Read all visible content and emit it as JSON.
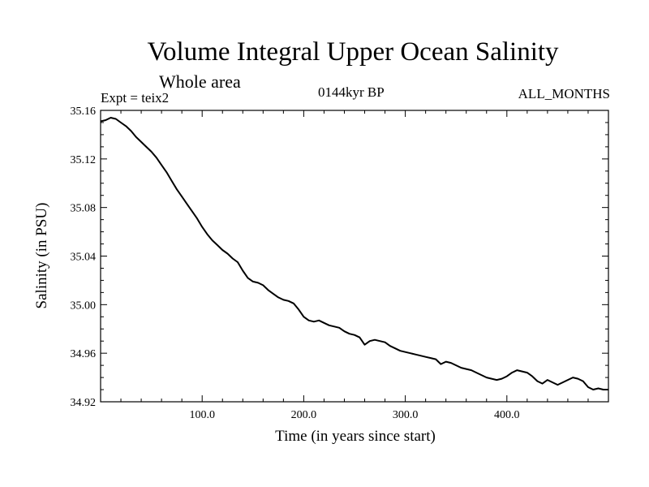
{
  "chart_data": {
    "type": "line",
    "title": "Volume Integral Upper Ocean Salinity",
    "subtitle": "Whole area",
    "left_label": "Expt = teix2",
    "center_label": "0144kyr BP",
    "right_label": "ALL_MONTHS",
    "xlabel": "Time (in years since start)",
    "ylabel": "Salinity (in PSU)",
    "xlim": [
      0,
      500
    ],
    "ylim": [
      34.92,
      35.16
    ],
    "xticks": [
      100,
      200,
      300,
      400
    ],
    "xtick_labels": [
      "100.0",
      "200.0",
      "300.0",
      "400.0"
    ],
    "yticks": [
      34.92,
      34.96,
      35.0,
      35.04,
      35.08,
      35.12,
      35.16
    ],
    "ytick_labels": [
      "34.92",
      "34.96",
      "35.00",
      "35.04",
      "35.08",
      "35.12",
      "35.16"
    ],
    "grid": false,
    "series": [
      {
        "line_color": "#000000",
        "x": [
          0,
          5,
          10,
          15,
          20,
          25,
          30,
          35,
          40,
          45,
          50,
          55,
          60,
          65,
          70,
          75,
          80,
          85,
          90,
          95,
          100,
          105,
          110,
          115,
          120,
          125,
          130,
          135,
          140,
          145,
          150,
          155,
          160,
          165,
          170,
          175,
          180,
          185,
          190,
          195,
          200,
          205,
          210,
          215,
          220,
          225,
          230,
          235,
          240,
          245,
          250,
          255,
          260,
          265,
          270,
          275,
          280,
          285,
          290,
          295,
          300,
          305,
          310,
          315,
          320,
          325,
          330,
          335,
          340,
          345,
          350,
          355,
          360,
          365,
          370,
          375,
          380,
          385,
          390,
          395,
          400,
          405,
          410,
          415,
          420,
          425,
          430,
          435,
          440,
          445,
          450,
          455,
          460,
          465,
          470,
          475,
          480,
          485,
          490,
          495,
          500
        ],
        "y": [
          35.151,
          35.152,
          35.154,
          35.153,
          35.15,
          35.147,
          35.143,
          35.138,
          35.134,
          35.13,
          35.126,
          35.121,
          35.115,
          35.109,
          35.102,
          35.095,
          35.089,
          35.083,
          35.077,
          35.071,
          35.064,
          35.058,
          35.053,
          35.049,
          35.045,
          35.042,
          35.038,
          35.035,
          35.028,
          35.022,
          35.019,
          35.018,
          35.016,
          35.012,
          35.009,
          35.006,
          35.004,
          35.003,
          35.001,
          34.996,
          34.99,
          34.987,
          34.986,
          34.987,
          34.985,
          34.983,
          34.982,
          34.981,
          34.978,
          34.976,
          34.975,
          34.973,
          34.967,
          34.97,
          34.971,
          34.97,
          34.969,
          34.966,
          34.964,
          34.962,
          34.961,
          34.96,
          34.959,
          34.958,
          34.957,
          34.956,
          34.955,
          34.951,
          34.953,
          34.952,
          34.95,
          34.948,
          34.947,
          34.946,
          34.944,
          34.942,
          34.94,
          34.939,
          34.938,
          34.939,
          34.941,
          34.944,
          34.946,
          34.945,
          34.944,
          34.941,
          34.937,
          34.935,
          34.938,
          34.936,
          34.934,
          34.936,
          34.938,
          34.94,
          34.939,
          34.937,
          34.932,
          34.93,
          34.931,
          34.93,
          34.93
        ]
      }
    ]
  }
}
